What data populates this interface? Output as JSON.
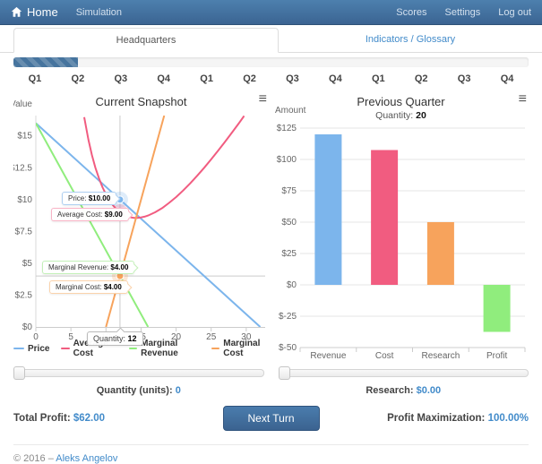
{
  "navbar": {
    "brand": "Home",
    "items": [
      {
        "label": "Simulation"
      }
    ],
    "right_items": [
      "Scores",
      "Settings",
      "Log out"
    ]
  },
  "tabs": [
    {
      "label": "Headquarters",
      "active": true
    },
    {
      "label": "Indicators / Glossary",
      "active": false
    }
  ],
  "progress": {
    "percent": 12.5
  },
  "quarters": [
    "Q1",
    "Q2",
    "Q3",
    "Q4",
    "Q1",
    "Q2",
    "Q3",
    "Q4",
    "Q1",
    "Q2",
    "Q3",
    "Q4"
  ],
  "chart_data": [
    {
      "type": "line",
      "title": "Current Snapshot",
      "ylabel": "Value",
      "xlim": [
        0,
        32.7
      ],
      "ylim": [
        0,
        16.6
      ],
      "xticks": [
        0,
        5,
        10,
        15,
        20,
        25,
        30
      ],
      "yticks": [
        {
          "v": 0,
          "label": "$0"
        },
        {
          "v": 2.5,
          "label": "$2.5"
        },
        {
          "v": 5,
          "label": "$5"
        },
        {
          "v": 7.5,
          "label": "$7.5"
        },
        {
          "v": 10,
          "label": "$10"
        },
        {
          "v": 12.5,
          "label": "$12.5"
        },
        {
          "v": 15,
          "label": "$15"
        }
      ],
      "grid": false,
      "legend_position": "bottom",
      "series": [
        {
          "name": "Price",
          "color": "#7cb5ec",
          "points": [
            [
              0,
              16
            ],
            [
              32,
              0
            ]
          ]
        },
        {
          "name": "Average Cost",
          "color": "#f15c80",
          "points": [
            [
              6.9,
              16.47
            ],
            [
              7.5,
              14.7
            ],
            [
              8,
              13.5
            ],
            [
              8.5,
              12.5
            ],
            [
              9,
              11.67
            ],
            [
              9.5,
              10.97
            ],
            [
              10,
              10.4
            ],
            [
              10.5,
              9.93
            ],
            [
              11,
              9.55
            ],
            [
              11.5,
              9.24
            ],
            [
              12,
              9.0
            ],
            [
              12.5,
              8.82
            ],
            [
              13,
              8.69
            ],
            [
              13.5,
              8.61
            ],
            [
              14,
              8.57
            ],
            [
              14.5,
              8.57
            ],
            [
              15,
              8.6
            ],
            [
              15.5,
              8.66
            ],
            [
              16,
              8.75
            ],
            [
              17,
              9.0
            ],
            [
              18,
              9.33
            ],
            [
              19,
              9.74
            ],
            [
              20,
              10.2
            ],
            [
              21,
              10.71
            ],
            [
              22,
              11.27
            ],
            [
              23,
              11.87
            ],
            [
              24,
              12.5
            ],
            [
              25,
              13.16
            ],
            [
              26,
              13.85
            ],
            [
              27,
              14.56
            ],
            [
              28,
              15.29
            ],
            [
              29,
              16.03
            ],
            [
              29.7,
              16.57
            ]
          ]
        },
        {
          "name": "Marginal Revenue",
          "color": "#90ed7d",
          "points": [
            [
              0,
              16
            ],
            [
              16,
              0
            ]
          ]
        },
        {
          "name": "Marginal Cost",
          "color": "#f7a35c",
          "points": [
            [
              10,
              0
            ],
            [
              18.3,
              16.6
            ]
          ]
        }
      ],
      "crosshair": {
        "x": 12,
        "y": 4
      },
      "markers": [
        {
          "x": 12,
          "y": 10,
          "color": "#7cb5ec"
        },
        {
          "x": 12,
          "y": 9,
          "color": "#f15c80"
        },
        {
          "x": 12,
          "y": 4,
          "color": "#f7a35c"
        }
      ],
      "tooltips": [
        {
          "label": "Price:",
          "value": "$10.00"
        },
        {
          "label": "Average Cost:",
          "value": "$9.00"
        },
        {
          "label": "Marginal Revenue:",
          "value": "$4.00"
        },
        {
          "label": "Marginal Cost:",
          "value": "$4.00"
        }
      ],
      "axis_tooltip": {
        "label": "Quantity:",
        "value": "12"
      }
    },
    {
      "type": "bar",
      "title": "Previous Quarter",
      "subtitle_label": "Quantity:",
      "subtitle_value": "20",
      "ylabel": "Amount",
      "categories": [
        "Revenue",
        "Cost",
        "Research",
        "Profit"
      ],
      "values": [
        120,
        107.5,
        50,
        -37.5
      ],
      "colors": [
        "#7cb5ec",
        "#f15c80",
        "#f7a35c",
        "#90ed7d"
      ],
      "ylim": [
        -50,
        125
      ],
      "grid": true,
      "yticks": [
        {
          "v": 125,
          "label": "$125"
        },
        {
          "v": 100,
          "label": "$100"
        },
        {
          "v": 75,
          "label": "$75"
        },
        {
          "v": 50,
          "label": "$50"
        },
        {
          "v": 25,
          "label": "$25"
        },
        {
          "v": 0,
          "label": "$0"
        },
        {
          "v": -25,
          "label": "$-25"
        },
        {
          "v": -50,
          "label": "$-50"
        }
      ]
    }
  ],
  "controls": {
    "quantity_label": "Quantity (units):",
    "quantity_value": "0",
    "research_label": "Research:",
    "research_value": "$0.00",
    "next_turn_label": "Next Turn"
  },
  "summary": {
    "total_profit_label": "Total Profit:",
    "total_profit_value": "$62.00",
    "profit_max_label": "Profit Maximization:",
    "profit_max_value": "100.00%"
  },
  "footer": {
    "copyright": "© 2016 –",
    "author_link": "Aleks Angelov"
  },
  "icons": {
    "menu": "≡"
  },
  "colors": {
    "link_blue": "#428bca",
    "navbar_top": "#4d80ae",
    "navbar_bottom": "#3b6492"
  }
}
